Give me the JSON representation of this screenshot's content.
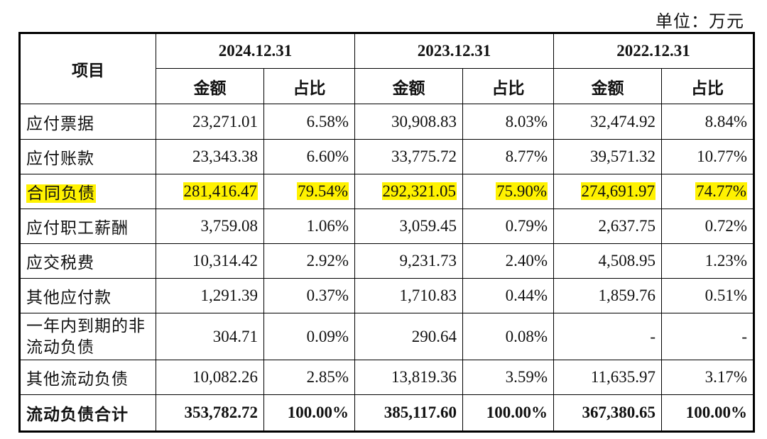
{
  "unit_label": "单位：万元",
  "header": {
    "item_label": "项目",
    "periods": [
      "2024.12.31",
      "2023.12.31",
      "2022.12.31"
    ],
    "amount_label": "金额",
    "ratio_label": "占比"
  },
  "rows": [
    {
      "label": "应付票据",
      "values": [
        "23,271.01",
        "6.58%",
        "30,908.83",
        "8.03%",
        "32,474.92",
        "8.84%"
      ],
      "highlighted": false
    },
    {
      "label": "应付账款",
      "values": [
        "23,343.38",
        "6.60%",
        "33,775.72",
        "8.77%",
        "39,571.32",
        "10.77%"
      ],
      "highlighted": false
    },
    {
      "label": "合同负债",
      "values": [
        "281,416.47",
        "79.54%",
        "292,321.05",
        "75.90%",
        "274,691.97",
        "74.77%"
      ],
      "highlighted": true
    },
    {
      "label": "应付职工薪酬",
      "values": [
        "3,759.08",
        "1.06%",
        "3,059.45",
        "0.79%",
        "2,637.75",
        "0.72%"
      ],
      "highlighted": false
    },
    {
      "label": "应交税费",
      "values": [
        "10,314.42",
        "2.92%",
        "9,231.73",
        "2.40%",
        "4,508.95",
        "1.23%"
      ],
      "highlighted": false
    },
    {
      "label": "其他应付款",
      "values": [
        "1,291.39",
        "0.37%",
        "1,710.83",
        "0.44%",
        "1,859.76",
        "0.51%"
      ],
      "highlighted": false
    },
    {
      "label": "一年内到期的非流动负债",
      "values": [
        "304.71",
        "0.09%",
        "290.64",
        "0.08%",
        "-",
        "-"
      ],
      "highlighted": false
    },
    {
      "label": "其他流动负债",
      "values": [
        "10,082.26",
        "2.85%",
        "13,819.36",
        "3.59%",
        "11,635.97",
        "3.17%"
      ],
      "highlighted": false
    }
  ],
  "total": {
    "label": "流动负债合计",
    "values": [
      "353,782.72",
      "100.00%",
      "385,117.60",
      "100.00%",
      "367,380.65",
      "100.00%"
    ]
  },
  "colors": {
    "highlight": "#fff200",
    "border": "#000000"
  }
}
